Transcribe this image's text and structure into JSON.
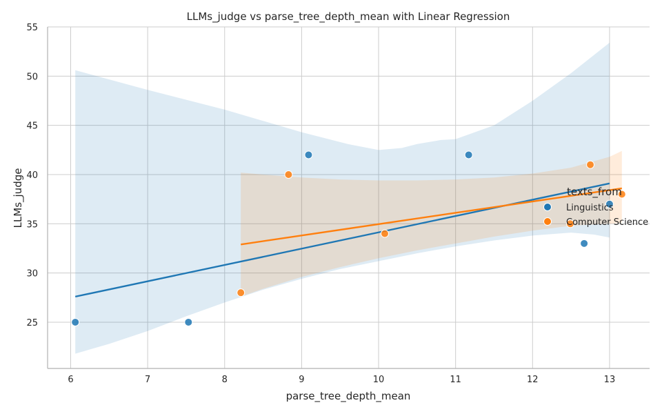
{
  "chart_data": {
    "type": "scatter",
    "title": "LLMs_judge vs parse_tree_depth_mean with Linear Regression",
    "xlabel": "parse_tree_depth_mean",
    "ylabel": "LLMs_judge",
    "xlim": [
      5.7,
      13.52
    ],
    "ylim": [
      20.3,
      55
    ],
    "xticks": [
      6,
      7,
      8,
      9,
      10,
      11,
      12,
      13
    ],
    "yticks": [
      25,
      30,
      35,
      40,
      45,
      50,
      55
    ],
    "grid": true,
    "legend": {
      "title": "texts_from",
      "placement": "right"
    },
    "series": [
      {
        "name": "Linguistics",
        "color": "#1f77b4",
        "points": [
          {
            "x": 6.06,
            "y": 25
          },
          {
            "x": 7.53,
            "y": 25
          },
          {
            "x": 9.09,
            "y": 42
          },
          {
            "x": 11.17,
            "y": 42
          },
          {
            "x": 12.67,
            "y": 33
          },
          {
            "x": 13.0,
            "y": 37
          }
        ],
        "regression": {
          "x": [
            6.06,
            13.0
          ],
          "y": [
            27.6,
            39.1
          ]
        },
        "ci_upper": [
          [
            6.06,
            50.6
          ],
          [
            7.0,
            48.6
          ],
          [
            8.0,
            46.6
          ],
          [
            9.0,
            44.3
          ],
          [
            9.6,
            43.1
          ],
          [
            10.0,
            42.5
          ],
          [
            10.3,
            42.7
          ],
          [
            10.5,
            43.1
          ],
          [
            10.8,
            43.5
          ],
          [
            11.0,
            43.6
          ],
          [
            11.5,
            45.0
          ],
          [
            12.0,
            47.5
          ],
          [
            12.5,
            50.3
          ],
          [
            13.0,
            53.4
          ]
        ],
        "ci_lower": [
          [
            6.06,
            21.8
          ],
          [
            6.5,
            22.8
          ],
          [
            7.0,
            24.1
          ],
          [
            7.5,
            25.6
          ],
          [
            8.0,
            27.0
          ],
          [
            8.5,
            28.3
          ],
          [
            9.0,
            29.4
          ],
          [
            9.5,
            30.4
          ],
          [
            10.0,
            31.2
          ],
          [
            10.5,
            32.0
          ],
          [
            11.0,
            32.7
          ],
          [
            11.5,
            33.3
          ],
          [
            12.0,
            33.8
          ],
          [
            12.5,
            34.1
          ],
          [
            12.8,
            33.9
          ],
          [
            13.0,
            33.6
          ]
        ]
      },
      {
        "name": "Computer Science",
        "color": "#ff7f0e",
        "points": [
          {
            "x": 8.21,
            "y": 28
          },
          {
            "x": 8.83,
            "y": 40
          },
          {
            "x": 10.08,
            "y": 34
          },
          {
            "x": 12.49,
            "y": 35
          },
          {
            "x": 12.75,
            "y": 41
          },
          {
            "x": 13.16,
            "y": 38
          }
        ],
        "regression": {
          "x": [
            8.21,
            13.16
          ],
          "y": [
            32.9,
            38.6
          ]
        },
        "ci_upper": [
          [
            8.21,
            40.2
          ],
          [
            8.5,
            40.0
          ],
          [
            9.0,
            39.7
          ],
          [
            9.5,
            39.5
          ],
          [
            10.0,
            39.4
          ],
          [
            10.5,
            39.4
          ],
          [
            11.0,
            39.5
          ],
          [
            11.5,
            39.7
          ],
          [
            12.0,
            40.1
          ],
          [
            12.5,
            40.7
          ],
          [
            13.0,
            41.8
          ],
          [
            13.16,
            42.4
          ]
        ],
        "ci_lower": [
          [
            8.21,
            27.6
          ],
          [
            8.5,
            28.4
          ],
          [
            9.0,
            29.6
          ],
          [
            9.5,
            30.6
          ],
          [
            10.0,
            31.5
          ],
          [
            10.5,
            32.3
          ],
          [
            11.0,
            33.0
          ],
          [
            11.5,
            33.7
          ],
          [
            12.0,
            34.3
          ],
          [
            12.5,
            34.8
          ],
          [
            13.0,
            35.0
          ],
          [
            13.16,
            35.1
          ]
        ]
      }
    ]
  }
}
